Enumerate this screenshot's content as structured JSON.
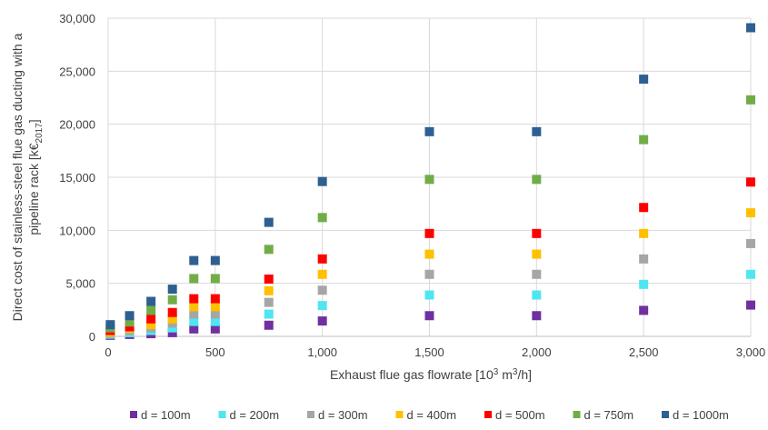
{
  "chart_data": {
    "type": "scatter",
    "xlabel": {
      "pre": "Exhaust flue gas flowrate [10",
      "sup1": "3",
      "mid": " m",
      "sup2": "3",
      "post": "/h]"
    },
    "ylabel": {
      "line1": "Direct cost of stainless-steel flue gas ducting with a",
      "line2_pre": "pipeline rack [k€",
      "line2_sub": "2017",
      "line2_post": "]"
    },
    "xlim": [
      0,
      3000
    ],
    "ylim": [
      0,
      30000
    ],
    "x_ticks": [
      0,
      500,
      1000,
      1500,
      2000,
      2500,
      3000
    ],
    "x_tick_labels": [
      "0",
      "500",
      "1,000",
      "1,500",
      "2,000",
      "2,500",
      "3,000"
    ],
    "y_ticks": [
      0,
      5000,
      10000,
      15000,
      20000,
      25000,
      30000
    ],
    "y_tick_labels": [
      "0",
      "5,000",
      "10,000",
      "15,000",
      "20,000",
      "25,000",
      "30,000"
    ],
    "grid": true,
    "legend_position": "bottom",
    "x": [
      10,
      100,
      200,
      300,
      400,
      500,
      750,
      1000,
      1500,
      2000,
      2500,
      3000
    ],
    "series": [
      {
        "name": "d = 100m",
        "color": "#7030a0",
        "values": [
          100,
          180,
          250,
          350,
          700,
          700,
          1050,
          1450,
          1950,
          1950,
          2450,
          2950
        ]
      },
      {
        "name": "d = 200m",
        "color": "#4ee6f0",
        "values": [
          200,
          350,
          550,
          800,
          1400,
          1400,
          2100,
          2900,
          3900,
          3900,
          4900,
          5850
        ]
      },
      {
        "name": "d = 300m",
        "color": "#a6a6a6",
        "values": [
          300,
          550,
          800,
          1250,
          2100,
          2100,
          3200,
          4350,
          5850,
          5850,
          7300,
          8750
        ]
      },
      {
        "name": "d = 400m",
        "color": "#ffc000",
        "values": [
          400,
          750,
          1100,
          1650,
          2800,
          2800,
          4300,
          5850,
          7750,
          7750,
          9700,
          11650
        ]
      },
      {
        "name": "d = 500m",
        "color": "#ff0000",
        "values": [
          550,
          900,
          1650,
          2250,
          3550,
          3550,
          5400,
          7300,
          9700,
          9700,
          12150,
          14550
        ]
      },
      {
        "name": "d = 750m",
        "color": "#70ad47",
        "values": [
          800,
          1350,
          2450,
          3450,
          5450,
          5450,
          8200,
          11200,
          14800,
          14800,
          18550,
          22300
        ]
      },
      {
        "name": "d = 1000m",
        "color": "#2e5f91",
        "values": [
          1100,
          1950,
          3300,
          4450,
          7150,
          7150,
          10750,
          14600,
          19300,
          19300,
          24250,
          29100
        ]
      }
    ]
  }
}
